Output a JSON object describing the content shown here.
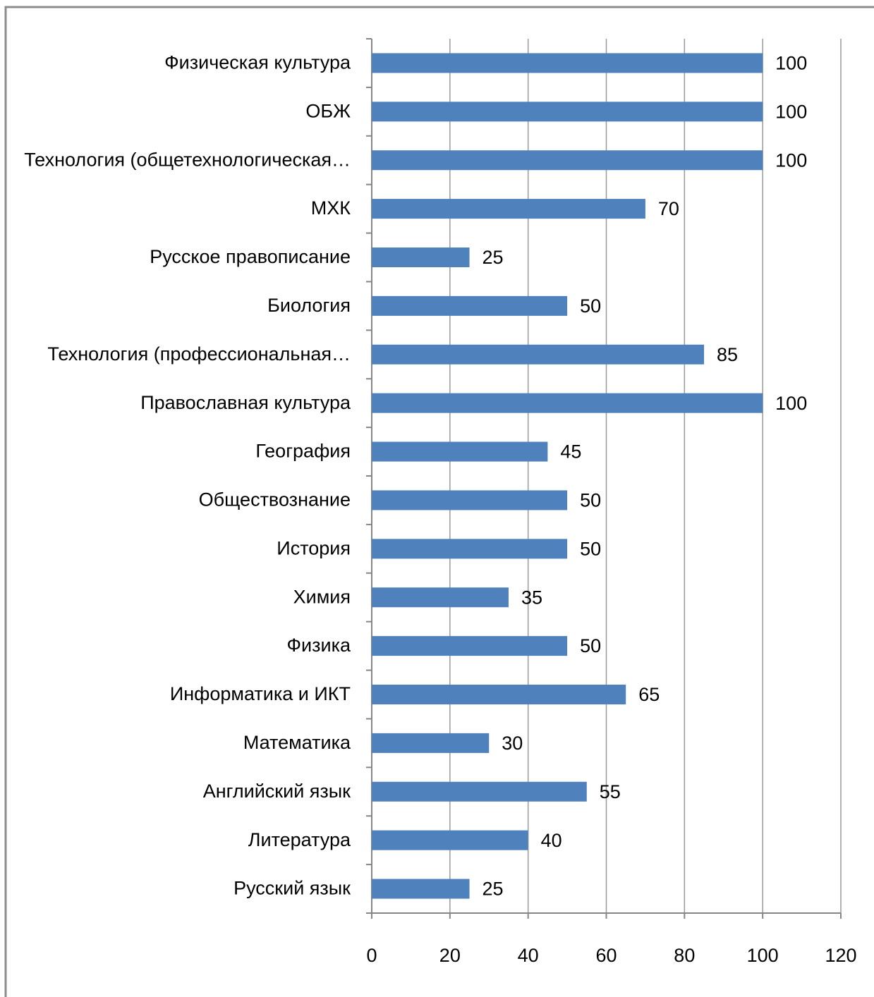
{
  "chart_data": {
    "type": "barh",
    "categories": [
      "Физическая культура",
      "ОБЖ",
      "Технология (общетехнологическая…",
      "МХК",
      "Русское правописание",
      "Биология",
      "Технология (профессиональная…",
      "Православная культура",
      "География",
      "Обществознание",
      "История",
      "Химия",
      "Физика",
      "Информатика и ИКТ",
      "Математика",
      "Английский язык",
      "Литература",
      "Русский язык"
    ],
    "values": [
      100,
      100,
      100,
      70,
      25,
      50,
      85,
      100,
      45,
      50,
      50,
      35,
      50,
      65,
      30,
      55,
      40,
      25
    ],
    "color": "#4f81bd",
    "xlim": [
      0,
      120
    ],
    "xticks": [
      0,
      20,
      40,
      60,
      80,
      100,
      120
    ],
    "grid": true
  }
}
